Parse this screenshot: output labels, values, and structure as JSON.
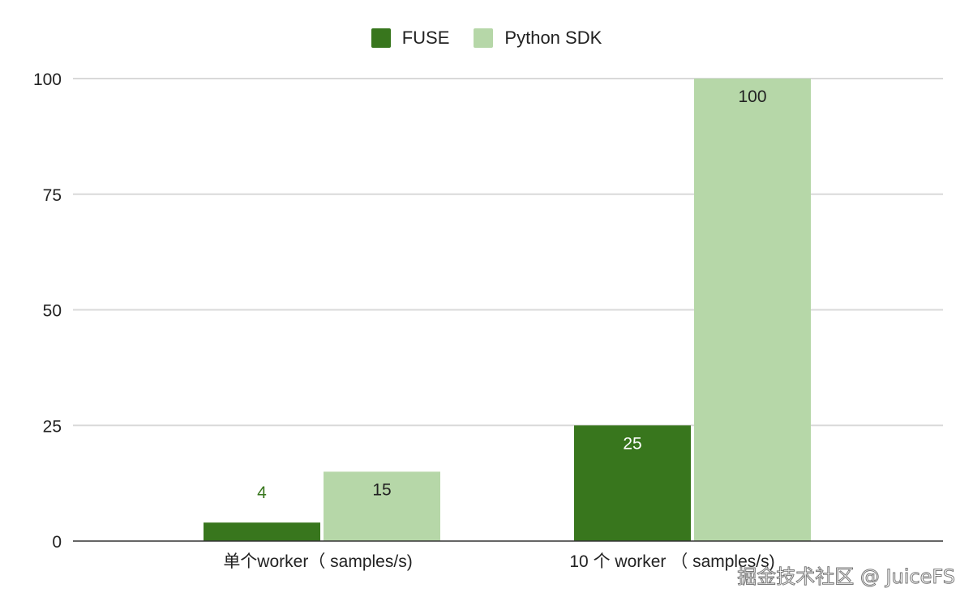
{
  "chart_data": {
    "type": "bar",
    "categories": [
      "单个worker（ samples/s)",
      "10 个 worker （ samples/s)"
    ],
    "series": [
      {
        "name": "FUSE",
        "values": [
          4,
          25
        ],
        "color": "#38761d"
      },
      {
        "name": "Python SDK",
        "values": [
          15,
          100
        ],
        "color": "#b6d7a8"
      }
    ],
    "ylim": [
      0,
      100
    ],
    "yticks": [
      0,
      25,
      50,
      75,
      100
    ],
    "grid": true,
    "legend": "top",
    "data_labels": true,
    "title": "",
    "xlabel": "",
    "ylabel": ""
  },
  "watermark": "掘金技术社区 @ JuiceFS"
}
